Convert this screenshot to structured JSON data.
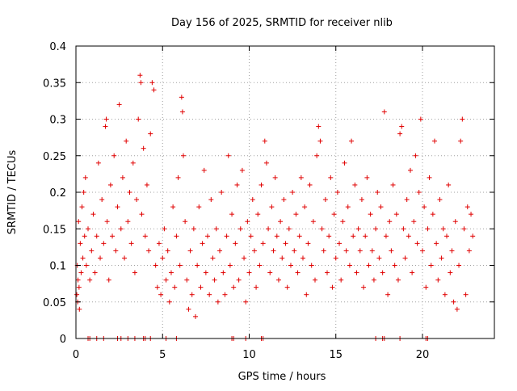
{
  "chart_data": {
    "type": "scatter",
    "title": "Day 156 of 2025, SRMTID for receiver nlib",
    "xlabel": "GPS time / hours",
    "ylabel": "SRMTID / TECUs",
    "xlim": [
      0,
      24.15
    ],
    "ylim": [
      0,
      0.4
    ],
    "xticks": [
      0,
      5,
      10,
      15,
      20
    ],
    "yticks": [
      0,
      0.05,
      0.1,
      0.15,
      0.2,
      0.25,
      0.3,
      0.35,
      0.4
    ],
    "ytick_labels": [
      "0",
      "0.05",
      "0.1",
      "0.15",
      "0.2",
      "0.25",
      "0.3",
      "0.35",
      "0.4"
    ],
    "grid": true,
    "marker": "plus",
    "color": "#e00000",
    "series": [
      {
        "name": "SRMTID",
        "points": [
          [
            0.05,
            0.06
          ],
          [
            0.08,
            0.1
          ],
          [
            0.1,
            0.05
          ],
          [
            0.12,
            0.08
          ],
          [
            0.15,
            0.16
          ],
          [
            0.18,
            0.07
          ],
          [
            0.2,
            0.04
          ],
          [
            0.25,
            0.13
          ],
          [
            0.3,
            0.09
          ],
          [
            0.35,
            0.18
          ],
          [
            0.4,
            0.11
          ],
          [
            0.45,
            0.2
          ],
          [
            0.5,
            0.14
          ],
          [
            0.55,
            0.22
          ],
          [
            0.6,
            0.1
          ],
          [
            0.7,
            0.15
          ],
          [
            0.8,
            0.08
          ],
          [
            0.9,
            0.12
          ],
          [
            1.0,
            0.17
          ],
          [
            1.1,
            0.09
          ],
          [
            1.2,
            0.14
          ],
          [
            1.3,
            0.24
          ],
          [
            1.4,
            0.11
          ],
          [
            1.5,
            0.19
          ],
          [
            1.6,
            0.13
          ],
          [
            1.7,
            0.29
          ],
          [
            1.75,
            0.3
          ],
          [
            1.8,
            0.16
          ],
          [
            1.9,
            0.08
          ],
          [
            2.0,
            0.21
          ],
          [
            2.1,
            0.14
          ],
          [
            2.2,
            0.25
          ],
          [
            2.3,
            0.12
          ],
          [
            2.4,
            0.18
          ],
          [
            2.5,
            0.32
          ],
          [
            2.6,
            0.15
          ],
          [
            2.7,
            0.22
          ],
          [
            2.8,
            0.11
          ],
          [
            2.9,
            0.27
          ],
          [
            3.0,
            0.16
          ],
          [
            3.1,
            0.2
          ],
          [
            3.2,
            0.13
          ],
          [
            3.3,
            0.24
          ],
          [
            3.4,
            0.09
          ],
          [
            3.5,
            0.19
          ],
          [
            3.6,
            0.3
          ],
          [
            3.7,
            0.36
          ],
          [
            3.75,
            0.35
          ],
          [
            3.8,
            0.17
          ],
          [
            3.9,
            0.26
          ],
          [
            4.0,
            0.14
          ],
          [
            4.1,
            0.21
          ],
          [
            4.2,
            0.12
          ],
          [
            4.3,
            0.28
          ],
          [
            4.4,
            0.35
          ],
          [
            4.5,
            0.34
          ],
          [
            4.6,
            0.1
          ],
          [
            4.7,
            0.07
          ],
          [
            4.8,
            0.13
          ],
          [
            4.9,
            0.06
          ],
          [
            5.0,
            0.11
          ],
          [
            5.1,
            0.15
          ],
          [
            5.2,
            0.08
          ],
          [
            5.3,
            0.12
          ],
          [
            5.4,
            0.05
          ],
          [
            5.5,
            0.09
          ],
          [
            5.6,
            0.18
          ],
          [
            5.7,
            0.07
          ],
          [
            5.8,
            0.14
          ],
          [
            5.9,
            0.22
          ],
          [
            6.0,
            0.1
          ],
          [
            6.1,
            0.33
          ],
          [
            6.15,
            0.31
          ],
          [
            6.2,
            0.25
          ],
          [
            6.3,
            0.16
          ],
          [
            6.4,
            0.08
          ],
          [
            6.5,
            0.04
          ],
          [
            6.6,
            0.12
          ],
          [
            6.7,
            0.06
          ],
          [
            6.8,
            0.15
          ],
          [
            6.9,
            0.03
          ],
          [
            7.0,
            0.1
          ],
          [
            7.1,
            0.18
          ],
          [
            7.2,
            0.07
          ],
          [
            7.3,
            0.13
          ],
          [
            7.4,
            0.23
          ],
          [
            7.5,
            0.09
          ],
          [
            7.6,
            0.14
          ],
          [
            7.7,
            0.06
          ],
          [
            7.8,
            0.19
          ],
          [
            7.9,
            0.11
          ],
          [
            8.0,
            0.08
          ],
          [
            8.1,
            0.15
          ],
          [
            8.2,
            0.05
          ],
          [
            8.3,
            0.12
          ],
          [
            8.4,
            0.2
          ],
          [
            8.5,
            0.09
          ],
          [
            8.6,
            0.06
          ],
          [
            8.7,
            0.14
          ],
          [
            8.8,
            0.25
          ],
          [
            8.9,
            0.1
          ],
          [
            9.0,
            0.17
          ],
          [
            9.1,
            0.07
          ],
          [
            9.2,
            0.13
          ],
          [
            9.3,
            0.21
          ],
          [
            9.4,
            0.08
          ],
          [
            9.5,
            0.15
          ],
          [
            9.6,
            0.23
          ],
          [
            9.7,
            0.11
          ],
          [
            9.8,
            0.05
          ],
          [
            9.9,
            0.16
          ],
          [
            10.0,
            0.09
          ],
          [
            10.1,
            0.14
          ],
          [
            10.2,
            0.19
          ],
          [
            10.3,
            0.12
          ],
          [
            10.4,
            0.07
          ],
          [
            10.5,
            0.17
          ],
          [
            10.6,
            0.1
          ],
          [
            10.7,
            0.21
          ],
          [
            10.8,
            0.13
          ],
          [
            10.9,
            0.27
          ],
          [
            11.0,
            0.24
          ],
          [
            11.1,
            0.15
          ],
          [
            11.2,
            0.09
          ],
          [
            11.3,
            0.18
          ],
          [
            11.4,
            0.12
          ],
          [
            11.5,
            0.22
          ],
          [
            11.6,
            0.14
          ],
          [
            11.7,
            0.08
          ],
          [
            11.8,
            0.16
          ],
          [
            11.9,
            0.11
          ],
          [
            12.0,
            0.19
          ],
          [
            12.1,
            0.13
          ],
          [
            12.2,
            0.07
          ],
          [
            12.3,
            0.15
          ],
          [
            12.4,
            0.1
          ],
          [
            12.5,
            0.2
          ],
          [
            12.6,
            0.12
          ],
          [
            12.7,
            0.17
          ],
          [
            12.8,
            0.09
          ],
          [
            12.9,
            0.14
          ],
          [
            13.0,
            0.22
          ],
          [
            13.1,
            0.11
          ],
          [
            13.2,
            0.18
          ],
          [
            13.3,
            0.06
          ],
          [
            13.4,
            0.13
          ],
          [
            13.5,
            0.21
          ],
          [
            13.6,
            0.1
          ],
          [
            13.7,
            0.16
          ],
          [
            13.8,
            0.08
          ],
          [
            13.9,
            0.25
          ],
          [
            14.0,
            0.29
          ],
          [
            14.1,
            0.27
          ],
          [
            14.2,
            0.15
          ],
          [
            14.3,
            0.12
          ],
          [
            14.4,
            0.19
          ],
          [
            14.5,
            0.09
          ],
          [
            14.6,
            0.14
          ],
          [
            14.7,
            0.22
          ],
          [
            14.8,
            0.07
          ],
          [
            14.9,
            0.17
          ],
          [
            15.0,
            0.11
          ],
          [
            15.1,
            0.2
          ],
          [
            15.2,
            0.13
          ],
          [
            15.3,
            0.08
          ],
          [
            15.4,
            0.16
          ],
          [
            15.5,
            0.24
          ],
          [
            15.6,
            0.12
          ],
          [
            15.7,
            0.18
          ],
          [
            15.8,
            0.1
          ],
          [
            15.9,
            0.27
          ],
          [
            16.0,
            0.14
          ],
          [
            16.1,
            0.21
          ],
          [
            16.2,
            0.09
          ],
          [
            16.3,
            0.15
          ],
          [
            16.4,
            0.12
          ],
          [
            16.5,
            0.19
          ],
          [
            16.6,
            0.07
          ],
          [
            16.7,
            0.14
          ],
          [
            16.8,
            0.22
          ],
          [
            16.9,
            0.1
          ],
          [
            17.0,
            0.17
          ],
          [
            17.1,
            0.12
          ],
          [
            17.2,
            0.08
          ],
          [
            17.3,
            0.15
          ],
          [
            17.4,
            0.2
          ],
          [
            17.5,
            0.11
          ],
          [
            17.6,
            0.18
          ],
          [
            17.7,
            0.09
          ],
          [
            17.8,
            0.31
          ],
          [
            17.9,
            0.14
          ],
          [
            18.0,
            0.06
          ],
          [
            18.1,
            0.16
          ],
          [
            18.2,
            0.12
          ],
          [
            18.3,
            0.21
          ],
          [
            18.4,
            0.1
          ],
          [
            18.5,
            0.17
          ],
          [
            18.6,
            0.08
          ],
          [
            18.7,
            0.28
          ],
          [
            18.8,
            0.29
          ],
          [
            18.9,
            0.15
          ],
          [
            19.0,
            0.11
          ],
          [
            19.1,
            0.19
          ],
          [
            19.2,
            0.14
          ],
          [
            19.3,
            0.23
          ],
          [
            19.4,
            0.09
          ],
          [
            19.5,
            0.16
          ],
          [
            19.6,
            0.25
          ],
          [
            19.7,
            0.13
          ],
          [
            19.8,
            0.2
          ],
          [
            19.9,
            0.3
          ],
          [
            20.0,
            0.12
          ],
          [
            20.1,
            0.18
          ],
          [
            20.2,
            0.07
          ],
          [
            20.3,
            0.15
          ],
          [
            20.4,
            0.22
          ],
          [
            20.5,
            0.1
          ],
          [
            20.6,
            0.17
          ],
          [
            20.7,
            0.27
          ],
          [
            20.8,
            0.13
          ],
          [
            20.9,
            0.08
          ],
          [
            21.0,
            0.19
          ],
          [
            21.1,
            0.11
          ],
          [
            21.2,
            0.15
          ],
          [
            21.3,
            0.06
          ],
          [
            21.4,
            0.14
          ],
          [
            21.5,
            0.21
          ],
          [
            21.6,
            0.09
          ],
          [
            21.7,
            0.12
          ],
          [
            21.8,
            0.05
          ],
          [
            21.9,
            0.16
          ],
          [
            22.0,
            0.04
          ],
          [
            22.1,
            0.1
          ],
          [
            22.2,
            0.27
          ],
          [
            22.3,
            0.3
          ],
          [
            22.4,
            0.15
          ],
          [
            22.5,
            0.06
          ],
          [
            22.6,
            0.18
          ],
          [
            22.7,
            0.12
          ],
          [
            22.8,
            0.17
          ],
          [
            22.9,
            0.14
          ]
        ],
        "zero_points": [
          0.7,
          0.8,
          1.2,
          1.6,
          2.4,
          2.6,
          3.0,
          3.4,
          3.9,
          4.0,
          4.3,
          5.2,
          5.8,
          9.0,
          9.1,
          9.8,
          10.7,
          10.8,
          17.3,
          17.7,
          17.8,
          18.7,
          20.2,
          20.3
        ]
      }
    ]
  }
}
